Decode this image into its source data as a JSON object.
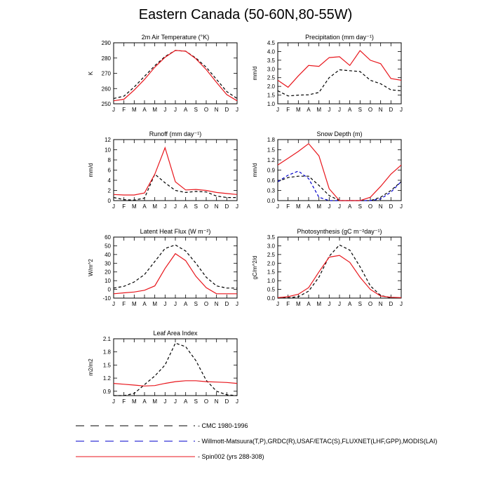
{
  "page_title": "Eastern Canada (50-60N,80-55W)",
  "colors": {
    "cmc": "#000000",
    "obs": "#0000cc",
    "model": "#e8161c"
  },
  "months": [
    "J",
    "F",
    "M",
    "A",
    "M",
    "J",
    "J",
    "A",
    "S",
    "O",
    "N",
    "D",
    "J"
  ],
  "legend": {
    "entries": [
      {
        "key": "cmc",
        "label": "CMC 1980-1996",
        "style": "dashed"
      },
      {
        "key": "obs",
        "label": "Willmott-Matsuura(T,P),GRDC(R),USAF/ETAC(S),FLUXNET(LHF,GPP),MODIS(LAI)",
        "style": "dashed"
      },
      {
        "key": "model",
        "label": "Spin002 (yrs 288-308)",
        "style": "solid"
      }
    ]
  },
  "chart_data": [
    {
      "type": "line",
      "title": "2m Air Temperature (°K)",
      "ylabel": "K",
      "ylim": [
        250,
        290
      ],
      "yticks": [
        250,
        260,
        270,
        280,
        290
      ],
      "ytick_labels": [
        "250",
        "260",
        "270",
        "280",
        "290"
      ],
      "series": [
        {
          "key": "cmc",
          "values": [
            253.5,
            255,
            261,
            268,
            275,
            281,
            285,
            284.5,
            280,
            274,
            266,
            258,
            253.5
          ]
        },
        {
          "key": "model",
          "values": [
            252,
            253,
            259,
            266,
            274,
            280.5,
            285,
            284.5,
            279.5,
            272.5,
            264,
            256,
            252
          ]
        }
      ]
    },
    {
      "type": "line",
      "title": "Precipitation (mm day⁻¹)",
      "ylabel": "mm/d",
      "ylim": [
        1.0,
        4.5
      ],
      "yticks": [
        1.0,
        1.5,
        2.0,
        2.5,
        3.0,
        3.5,
        4.0,
        4.5
      ],
      "ytick_labels": [
        "1.0",
        "1.5",
        "2.0",
        "2.5",
        "3.0",
        "3.5",
        "4.0",
        "4.5"
      ],
      "series": [
        {
          "key": "cmc",
          "values": [
            1.75,
            1.45,
            1.5,
            1.52,
            1.65,
            2.5,
            2.95,
            2.9,
            2.85,
            2.35,
            2.15,
            1.8,
            1.75
          ]
        },
        {
          "key": "model",
          "values": [
            2.35,
            1.95,
            2.6,
            3.2,
            3.15,
            3.65,
            3.7,
            3.2,
            4.05,
            3.5,
            3.3,
            2.45,
            2.35
          ]
        }
      ]
    },
    {
      "type": "line",
      "title": "Runoff (mm day⁻¹)",
      "ylabel": "mm/d",
      "ylim": [
        0,
        12
      ],
      "yticks": [
        0,
        2,
        4,
        6,
        8,
        10,
        12
      ],
      "ytick_labels": [
        "0",
        "2",
        "4",
        "6",
        "8",
        "10",
        "12"
      ],
      "series": [
        {
          "key": "cmc",
          "values": [
            0.6,
            0.2,
            0.1,
            0.5,
            5.2,
            3.5,
            2.0,
            1.6,
            1.8,
            1.7,
            0.9,
            0.6,
            0.6
          ]
        },
        {
          "key": "model",
          "values": [
            1.2,
            1.1,
            1.1,
            1.5,
            5.2,
            10.4,
            3.7,
            2.1,
            2.2,
            2.0,
            1.6,
            1.4,
            1.2
          ]
        }
      ]
    },
    {
      "type": "line",
      "title": "Snow Depth (m)",
      "ylabel": "mm/d",
      "ylim": [
        0,
        1.8
      ],
      "yticks": [
        0,
        0.3,
        0.6,
        0.9,
        1.2,
        1.5,
        1.8
      ],
      "ytick_labels": [
        "0.0",
        "0.3",
        "0.6",
        "0.9",
        "1.2",
        "1.5",
        "1.8"
      ],
      "series": [
        {
          "key": "cmc",
          "values": [
            0.56,
            0.68,
            0.72,
            0.72,
            0.45,
            0.15,
            0.0,
            0.0,
            0.0,
            0.0,
            0.1,
            0.3,
            0.56
          ]
        },
        {
          "key": "obs",
          "values": [
            0.56,
            0.75,
            0.87,
            0.65,
            0.1,
            0.0,
            0.0,
            0.0,
            0.0,
            0.0,
            0.05,
            0.25,
            0.56
          ]
        },
        {
          "key": "model",
          "values": [
            1.05,
            1.25,
            1.45,
            1.68,
            1.32,
            0.35,
            0.0,
            0.0,
            0.0,
            0.1,
            0.42,
            0.78,
            1.05
          ]
        }
      ]
    },
    {
      "type": "line",
      "title": "Latent Heat Flux (W m⁻²)",
      "ylabel": "W/m^2",
      "ylim": [
        -10,
        60
      ],
      "yticks": [
        -10,
        0,
        10,
        20,
        30,
        40,
        50,
        60
      ],
      "ytick_labels": [
        "-10",
        "0",
        "10",
        "20",
        "30",
        "40",
        "50",
        "60"
      ],
      "series": [
        {
          "key": "cmc",
          "values": [
            1.5,
            3.5,
            8.5,
            17,
            32,
            47,
            51,
            44,
            30,
            14,
            4,
            1.5,
            1.5
          ]
        },
        {
          "key": "model",
          "values": [
            -5,
            -4,
            -3,
            -1,
            4,
            24,
            41,
            33,
            15,
            2,
            -5,
            -5,
            -5
          ]
        }
      ]
    },
    {
      "type": "line",
      "title": "Photosynthesis (gC m⁻²day⁻¹)",
      "ylabel": "gC/m^2/d",
      "ylim": [
        0,
        3.5
      ],
      "yticks": [
        0,
        0.5,
        1.0,
        1.5,
        2.0,
        2.5,
        3.0,
        3.5
      ],
      "ytick_labels": [
        "0.0",
        "0.5",
        "1.0",
        "1.5",
        "2.0",
        "2.5",
        "3.0",
        "3.5"
      ],
      "series": [
        {
          "key": "cmc",
          "values": [
            0.0,
            0.02,
            0.08,
            0.4,
            1.2,
            2.4,
            3.05,
            2.75,
            1.8,
            0.7,
            0.15,
            0.02,
            0.0
          ]
        },
        {
          "key": "model",
          "values": [
            0.03,
            0.08,
            0.22,
            0.6,
            1.5,
            2.35,
            2.45,
            2.05,
            1.2,
            0.5,
            0.12,
            0.05,
            0.03
          ]
        }
      ]
    },
    {
      "type": "line",
      "title": "Leaf Area Index",
      "ylabel": "m2/m2",
      "ylim": [
        0.8,
        2.1
      ],
      "yticks": [
        0.9,
        1.2,
        1.5,
        1.8,
        2.1
      ],
      "ytick_labels": [
        "0.9",
        "1.2",
        "1.5",
        "1.8",
        "2.1"
      ],
      "series": [
        {
          "key": "cmc",
          "values": [
            0.8,
            0.8,
            0.85,
            1.05,
            1.25,
            1.5,
            2.0,
            1.92,
            1.6,
            1.15,
            0.9,
            0.82,
            0.8
          ]
        },
        {
          "key": "model",
          "values": [
            1.08,
            1.06,
            1.04,
            1.02,
            1.03,
            1.08,
            1.12,
            1.14,
            1.14,
            1.12,
            1.11,
            1.1,
            1.08
          ]
        }
      ]
    }
  ]
}
